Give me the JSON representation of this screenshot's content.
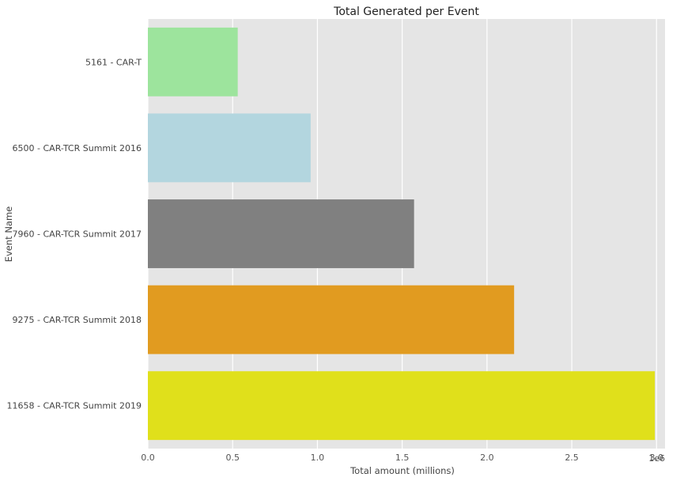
{
  "chart_data": {
    "type": "bar",
    "orientation": "horizontal",
    "title": "Total Generated per Event",
    "xlabel": "Total amount (millions)",
    "ylabel": "Event Name",
    "x_offset_label": "1e6",
    "xlim": [
      0,
      3050000
    ],
    "x_ticks": [
      0,
      500000,
      1000000,
      1500000,
      2000000,
      2500000,
      3000000
    ],
    "x_tick_labels": [
      "0.0",
      "0.5",
      "1.0",
      "1.5",
      "2.0",
      "2.5",
      "3.0"
    ],
    "grid": true,
    "categories": [
      "5161 - CAR-T",
      "6500 - CAR-TCR Summit 2016",
      "7960 - CAR-TCR Summit 2017",
      "9275 - CAR-TCR Summit 2018",
      "11658 - CAR-TCR Summit 2019"
    ],
    "values": [
      530000,
      960000,
      1570000,
      2160000,
      2990000
    ],
    "colors": [
      "#9de49d",
      "#b3d6df",
      "#808080",
      "#e19b20",
      "#e0e01b"
    ]
  },
  "style": {
    "plot_background": "#e5e5e5",
    "grid_color": "#ffffff"
  }
}
